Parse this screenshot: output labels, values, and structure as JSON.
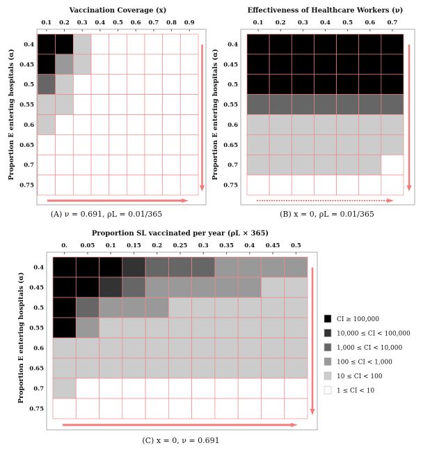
{
  "legend": {
    "levels": [
      {
        "label": "CI ≥ 100,000",
        "color": "#000000"
      },
      {
        "label": "10,000 ≤ CI < 100,000",
        "color": "#333333"
      },
      {
        "label": "1,000 ≤ CI < 10,000",
        "color": "#666666"
      },
      {
        "label": "100 ≤ CI < 1,000",
        "color": "#999999"
      },
      {
        "label": "10 ≤ CI < 100",
        "color": "#cccccc"
      },
      {
        "label": "1 ≤ CI < 10",
        "color": "#ffffff"
      }
    ]
  },
  "chart_data": [
    {
      "type": "heatmap",
      "title": "Vaccination Coverage (x)",
      "ylabel": "Proportion E entering hospitals (α)",
      "caption": "(A) ν = 0.691, ρL = 0.01/365",
      "x": [
        "0.1",
        "0.2",
        "0.3",
        "0.4",
        "0.5",
        "0.6",
        "0.7",
        "0.8",
        "0.9"
      ],
      "y": [
        "0.4",
        "0.45",
        "0.5",
        "0.55",
        "0.6",
        "0.65",
        "0.7",
        "0.75"
      ],
      "arrow_style": "solid",
      "levels_note": "5 = CI ≥ 100,000 ... 0 = 1 ≤ CI < 10",
      "values": [
        [
          5,
          5,
          1,
          0,
          0,
          0,
          0,
          0,
          0
        ],
        [
          5,
          2,
          1,
          0,
          0,
          0,
          0,
          0,
          0
        ],
        [
          3,
          1,
          0,
          0,
          0,
          0,
          0,
          0,
          0
        ],
        [
          1,
          1,
          0,
          0,
          0,
          0,
          0,
          0,
          0
        ],
        [
          1,
          0,
          0,
          0,
          0,
          0,
          0,
          0,
          0
        ],
        [
          0,
          0,
          0,
          0,
          0,
          0,
          0,
          0,
          0
        ],
        [
          0,
          0,
          0,
          0,
          0,
          0,
          0,
          0,
          0
        ],
        [
          0,
          0,
          0,
          0,
          0,
          0,
          0,
          0,
          0
        ]
      ]
    },
    {
      "type": "heatmap",
      "title": "Effectiveness of Healthcare Workers (ν)",
      "ylabel": "Proportion E entering hospitals (α)",
      "caption": "(B) x = 0, ρL = 0.01/365",
      "x": [
        "0.1",
        "0.2",
        "0.3",
        "0.4",
        "0.5",
        "0.6",
        "0.7"
      ],
      "y": [
        "0.4",
        "0.45",
        "0.5",
        "0.55",
        "0.6",
        "0.65",
        "0.7",
        "0.75"
      ],
      "arrow_style": "dotted",
      "values": [
        [
          5,
          5,
          5,
          5,
          5,
          5,
          5
        ],
        [
          5,
          5,
          5,
          5,
          5,
          5,
          5
        ],
        [
          5,
          5,
          5,
          5,
          5,
          5,
          5
        ],
        [
          3,
          3,
          3,
          3,
          3,
          3,
          3
        ],
        [
          1,
          1,
          1,
          1,
          1,
          1,
          1
        ],
        [
          1,
          1,
          1,
          1,
          1,
          1,
          1
        ],
        [
          1,
          1,
          1,
          1,
          1,
          1,
          0
        ],
        [
          0,
          0,
          0,
          0,
          0,
          0,
          0
        ]
      ]
    },
    {
      "type": "heatmap",
      "title": "Proportion SL vaccinated per year (ρL × 365)",
      "ylabel": "Proportion E entering hospitals (α)",
      "caption": "(C) x = 0, ν = 0.691",
      "x": [
        "0.",
        "0.05",
        "0.1",
        "0.15",
        "0.2",
        "0.25",
        "0.3",
        "0.35",
        "0.4",
        "0.45",
        "0.5"
      ],
      "y": [
        "0.4",
        "0.45",
        "0.5",
        "0.55",
        "0.6",
        "0.65",
        "0.7",
        "0.75"
      ],
      "arrow_style": "solid",
      "values": [
        [
          5,
          5,
          5,
          4,
          3,
          3,
          3,
          2,
          2,
          2,
          2
        ],
        [
          5,
          5,
          4,
          3,
          2,
          2,
          2,
          2,
          2,
          1,
          1
        ],
        [
          5,
          3,
          2,
          2,
          2,
          1,
          1,
          1,
          1,
          1,
          1
        ],
        [
          5,
          2,
          1,
          1,
          1,
          1,
          1,
          1,
          1,
          1,
          1
        ],
        [
          1,
          1,
          1,
          1,
          1,
          1,
          1,
          1,
          1,
          1,
          1
        ],
        [
          1,
          1,
          1,
          1,
          1,
          1,
          1,
          1,
          1,
          1,
          1
        ],
        [
          1,
          0,
          0,
          0,
          0,
          0,
          0,
          0,
          0,
          0,
          0
        ],
        [
          0,
          0,
          0,
          0,
          0,
          0,
          0,
          0,
          0,
          0,
          0
        ]
      ]
    }
  ]
}
